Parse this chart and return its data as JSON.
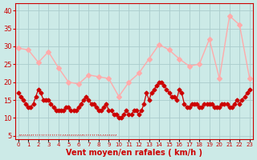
{
  "title": "",
  "xlabel": "Vent moyen/en rafales ( km/h )",
  "ylabel": "",
  "bg_color": "#cceae7",
  "grid_color": "#aacccc",
  "xlim": [
    -0.3,
    23.3
  ],
  "ylim": [
    4,
    42
  ],
  "yticks": [
    5,
    10,
    15,
    20,
    25,
    30,
    35,
    40
  ],
  "xtick_labels": [
    "0",
    "1",
    "2",
    "3",
    "4",
    "5",
    "6",
    "7",
    "8",
    "9",
    "10",
    "11",
    "12",
    "13",
    "14",
    "15",
    "16",
    "17",
    "18",
    "19",
    "20",
    "21",
    "22",
    "23"
  ],
  "gust_x": [
    0,
    1,
    2,
    3,
    4,
    5,
    6,
    7,
    8,
    9,
    10,
    11,
    12,
    13,
    14,
    15,
    16,
    17,
    18,
    19,
    20,
    21,
    22,
    23
  ],
  "gust_y": [
    29.5,
    29.0,
    25.5,
    28.5,
    24.0,
    20.0,
    19.5,
    22.0,
    21.5,
    21.0,
    16.0,
    20.0,
    22.5,
    26.5,
    30.5,
    29.0,
    26.5,
    24.5,
    25.0,
    32.0,
    21.0,
    38.5,
    36.0,
    21.0
  ],
  "avg_x": [
    0.0,
    0.25,
    0.5,
    0.75,
    1.0,
    1.25,
    1.5,
    1.75,
    2.0,
    2.25,
    2.5,
    2.75,
    3.0,
    3.25,
    3.5,
    3.75,
    4.0,
    4.25,
    4.5,
    4.75,
    5.0,
    5.25,
    5.5,
    5.75,
    6.0,
    6.25,
    6.5,
    6.75,
    7.0,
    7.25,
    7.5,
    7.75,
    8.0,
    8.25,
    8.5,
    8.75,
    9.0,
    9.25,
    9.5,
    9.75,
    10.0,
    10.25,
    10.5,
    10.75,
    11.0,
    11.25,
    11.5,
    11.75,
    12.0,
    12.25,
    12.5,
    12.75,
    13.0,
    13.25,
    13.5,
    13.75,
    14.0,
    14.25,
    14.5,
    14.75,
    15.0,
    15.25,
    15.5,
    15.75,
    16.0,
    16.25,
    16.5,
    16.75,
    17.0,
    17.25,
    17.5,
    17.75,
    18.0,
    18.25,
    18.5,
    18.75,
    19.0,
    19.25,
    19.5,
    19.75,
    20.0,
    20.25,
    20.5,
    20.75,
    21.0,
    21.25,
    21.5,
    21.75,
    22.0,
    22.25,
    22.5,
    22.75,
    23.0
  ],
  "avg_y": [
    17,
    16,
    15,
    14,
    13,
    13,
    14,
    16,
    18,
    17,
    15,
    15,
    15,
    14,
    13,
    12,
    12,
    12,
    12,
    13,
    13,
    12,
    12,
    12,
    13,
    14,
    15,
    16,
    15,
    14,
    14,
    13,
    12,
    12,
    13,
    14,
    12,
    12,
    11,
    11,
    10,
    10,
    11,
    12,
    11,
    11,
    12,
    12,
    11,
    12,
    14,
    17,
    15,
    17,
    18,
    19,
    20,
    20,
    19,
    18,
    17,
    16,
    16,
    15,
    18,
    17,
    14,
    13,
    13,
    14,
    14,
    14,
    13,
    13,
    14,
    14,
    14,
    14,
    13,
    13,
    13,
    14,
    14,
    14,
    13,
    13,
    14,
    15,
    14,
    15,
    16,
    17,
    18
  ],
  "avg_color": "#cc0000",
  "gust_color": "#ffaaaa",
  "avg_markersize": 2.5,
  "gust_markersize": 3,
  "avg_linewidth": 0.9,
  "gust_linewidth": 1.0,
  "xlabel_fontsize": 7,
  "ytick_fontsize": 6,
  "xtick_fontsize": 5
}
